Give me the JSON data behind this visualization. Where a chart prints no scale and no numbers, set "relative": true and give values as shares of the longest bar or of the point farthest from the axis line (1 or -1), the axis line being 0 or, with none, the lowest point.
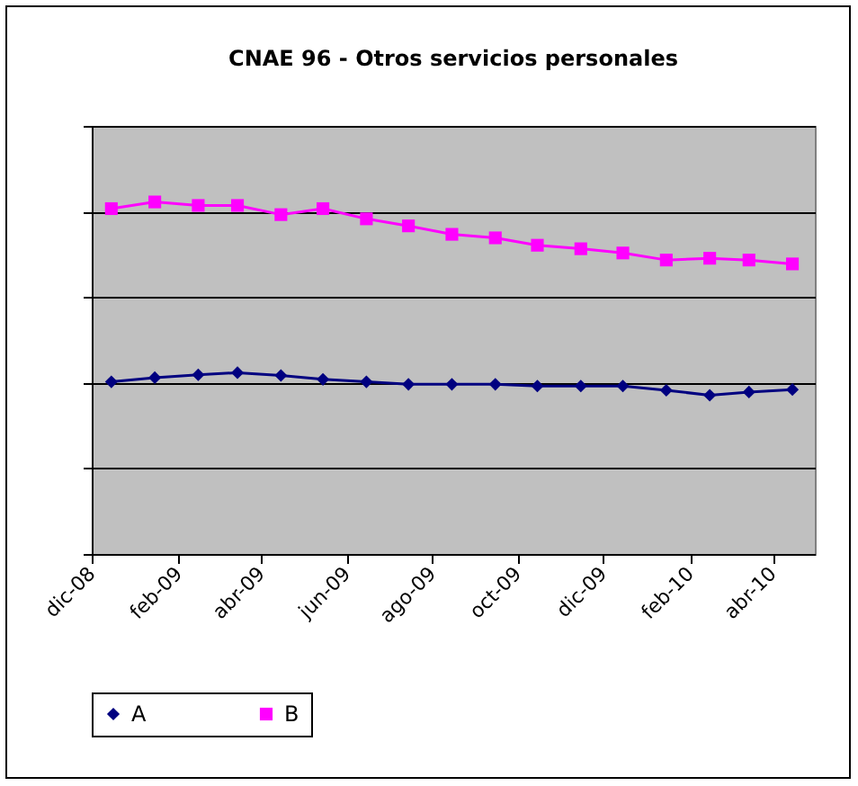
{
  "chart_data": {
    "type": "line",
    "title": "CNAE 96 - Otros servicios personales",
    "relative": true,
    "x": [
      "2008-12-15",
      "2009-01-15",
      "2009-02-15",
      "2009-03-15",
      "2009-04-15",
      "2009-05-15",
      "2009-06-15",
      "2009-07-15",
      "2009-08-15",
      "2009-09-15",
      "2009-10-15",
      "2009-11-15",
      "2009-12-15",
      "2010-01-15",
      "2010-02-15",
      "2010-03-15",
      "2010-04-15"
    ],
    "xlim": [
      "2008-12-01",
      "2010-05-01"
    ],
    "xticks": [
      {
        "value": "2008-12-01",
        "label": "dic-08"
      },
      {
        "value": "2009-02-01",
        "label": "feb-09"
      },
      {
        "value": "2009-04-01",
        "label": "abr-09"
      },
      {
        "value": "2009-06-01",
        "label": "jun-09"
      },
      {
        "value": "2009-08-01",
        "label": "ago-09"
      },
      {
        "value": "2009-10-01",
        "label": "oct-09"
      },
      {
        "value": "2009-12-01",
        "label": "dic-09"
      },
      {
        "value": "2010-02-01",
        "label": "feb-10"
      },
      {
        "value": "2010-04-01",
        "label": "abr-10"
      }
    ],
    "series": [
      {
        "name": "A",
        "color": "#000080",
        "marker": "diamond",
        "line_style": "solid",
        "values": [
          0.489,
          0.501,
          0.509,
          0.515,
          0.507,
          0.496,
          0.489,
          0.482,
          0.482,
          0.482,
          0.477,
          0.477,
          0.477,
          0.465,
          0.451,
          0.46,
          0.467
        ]
      },
      {
        "name": "B",
        "color": "#ff00ff",
        "marker": "square",
        "line_style": "solid",
        "values": [
          0.981,
          1,
          0.99,
          0.99,
          0.964,
          0.981,
          0.952,
          0.932,
          0.908,
          0.898,
          0.877,
          0.867,
          0.855,
          0.835,
          0.84,
          0.835,
          0.824
        ]
      }
    ],
    "grid": "y",
    "legend": "bottom",
    "tick_labels": "x"
  }
}
